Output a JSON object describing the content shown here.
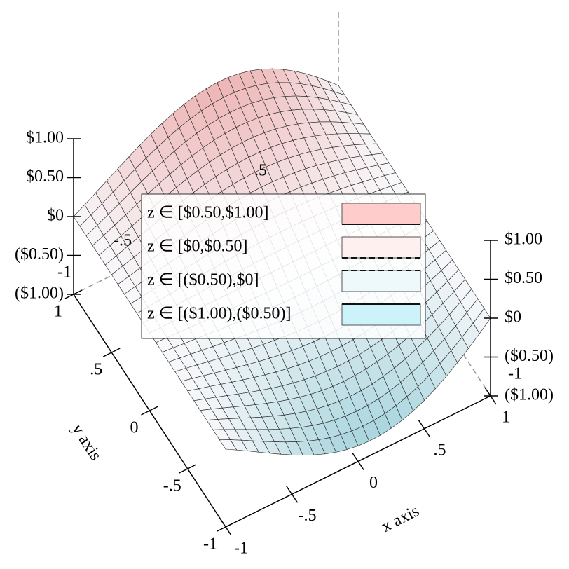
{
  "chart_data": {
    "type": "surface3d",
    "xlabel": "x axis",
    "ylabel": "y axis",
    "xlim": [
      -1,
      1
    ],
    "ylim": [
      -1,
      1
    ],
    "zlim": [
      -1,
      1
    ],
    "xticks": [
      -1,
      {
        "value": -0.5,
        "label": "-.5"
      },
      0,
      {
        "value": 0.5,
        "label": ".5"
      },
      1
    ],
    "yticks": [
      -1,
      {
        "value": -0.5,
        "label": "-.5"
      },
      0,
      {
        "value": 0.5,
        "label": ".5"
      },
      1
    ],
    "zticks": [
      {
        "value": -1,
        "label": "($1.00)"
      },
      {
        "value": -0.5,
        "label": "($0.50)"
      },
      {
        "value": 0,
        "label": "$0"
      },
      {
        "value": 0.5,
        "label": "$0.50"
      },
      {
        "value": 1,
        "label": "$1.00"
      }
    ],
    "legend": [
      {
        "label": "z ∈  [$0.50,$1.00]",
        "color": "#ffcccc",
        "line": "solid"
      },
      {
        "label": "z ∈  [$0,$0.50]",
        "color": "#fff0f0",
        "line": "dashed"
      },
      {
        "label": "z ∈  [($0.50),$0]",
        "color": "#eef9fb",
        "line": "dashed"
      },
      {
        "label": "z ∈  [($1.00),($0.50)]",
        "color": "#ccf2fa",
        "line": "solid"
      }
    ]
  }
}
